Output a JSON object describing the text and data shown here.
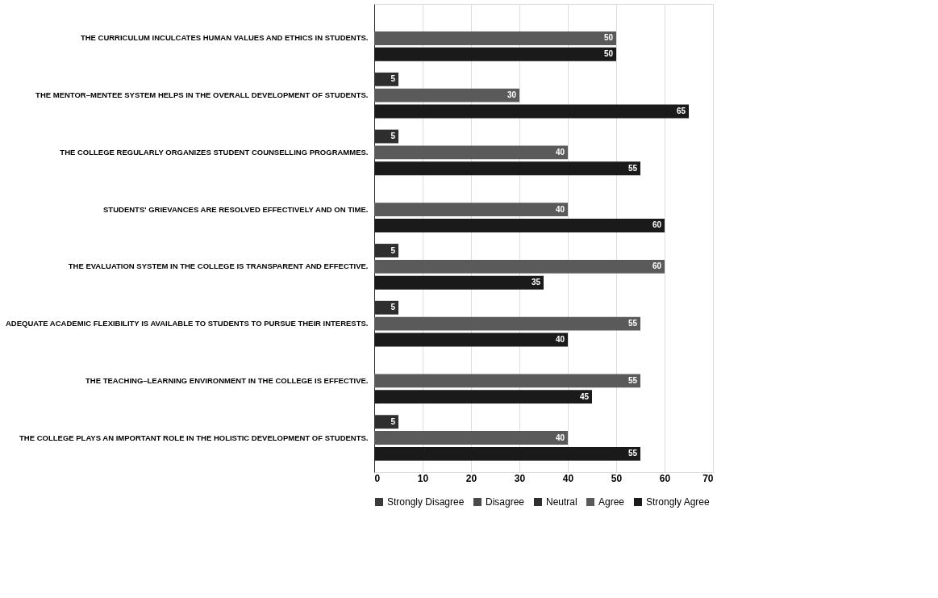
{
  "chart_data": {
    "type": "bar",
    "orientation": "horizontal",
    "categories": [
      "THE CURRICULUM INCULCATES HUMAN VALUES AND ETHICS IN STUDENTS.",
      "THE MENTOR–MENTEE SYSTEM HELPS IN THE OVERALL DEVELOPMENT OF STUDENTS.",
      "THE COLLEGE REGULARLY ORGANIZES STUDENT COUNSELLING PROGRAMMES.",
      "STUDENTS' GRIEVANCES ARE RESOLVED EFFECTIVELY AND ON TIME.",
      "THE EVALUATION SYSTEM IN THE COLLEGE IS TRANSPARENT AND EFFECTIVE.",
      "ADEQUATE ACADEMIC FLEXIBILITY IS AVAILABLE TO STUDENTS TO PURSUE THEIR INTERESTS.",
      "THE TEACHING–LEARNING ENVIRONMENT IN THE COLLEGE IS EFFECTIVE.",
      "THE COLLEGE PLAYS AN IMPORTANT ROLE IN THE HOLISTIC DEVELOPMENT OF STUDENTS."
    ],
    "series": [
      {
        "name": "Strongly Disagree",
        "color": "#3a3a3a",
        "values": [
          null,
          null,
          null,
          null,
          null,
          null,
          null,
          null
        ]
      },
      {
        "name": "Disagree",
        "color": "#4a4a4a",
        "values": [
          null,
          null,
          null,
          null,
          null,
          null,
          null,
          null
        ]
      },
      {
        "name": "Neutral",
        "color": "#2e2e2e",
        "values": [
          null,
          5,
          5,
          null,
          5,
          5,
          null,
          5
        ]
      },
      {
        "name": "Agree",
        "color": "#5a5a5a",
        "values": [
          50,
          30,
          40,
          40,
          60,
          55,
          55,
          40
        ]
      },
      {
        "name": "Strongly Agree",
        "color": "#1a1a1a",
        "values": [
          50,
          65,
          55,
          60,
          35,
          40,
          45,
          55
        ]
      }
    ],
    "xlim": [
      0,
      70
    ],
    "xticks": [
      0,
      10,
      20,
      30,
      40,
      50,
      60,
      70
    ],
    "grid": "x",
    "legend": "bottom",
    "data_labels": true
  }
}
